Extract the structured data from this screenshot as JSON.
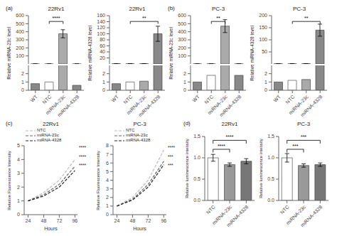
{
  "chart_data": [
    {
      "type": "bar",
      "panel_label": "(a)",
      "title": "22Rv1",
      "ylabel": "Relative miRNA-23c level",
      "categories": [
        "WT",
        "NTC",
        "miRNA-23c",
        "miRNA-4328"
      ],
      "values": [
        0.8,
        1.0,
        375,
        0.6
      ],
      "errors": [
        0.1,
        0.15,
        50,
        0.1
      ],
      "colors": [
        "#888888",
        "#ffffff",
        "#aaaaaa",
        "#888888"
      ],
      "ylim": [
        0,
        600
      ],
      "yticks": [
        100,
        200,
        300,
        400,
        500,
        600
      ],
      "ylim_lower": [
        0,
        3
      ],
      "yticks_lower": [
        0,
        1,
        2
      ],
      "significance": [
        {
          "text": "****",
          "from": "NTC",
          "to": "miRNA-23c"
        }
      ]
    },
    {
      "type": "bar",
      "title": "22Rv1",
      "ylabel": "Relative miRNA-4328 level",
      "categories": [
        "WT",
        "NTC",
        "miRNA-23c",
        "miRNA-4328"
      ],
      "values": [
        0.8,
        1.0,
        1.1,
        100
      ],
      "errors": [
        0.1,
        0.1,
        0.15,
        25
      ],
      "colors": [
        "#888888",
        "#ffffff",
        "#aaaaaa",
        "#888888"
      ],
      "ylim": [
        0,
        160
      ],
      "yticks": [
        20,
        40,
        60,
        80,
        100,
        120,
        140,
        160
      ],
      "ylim_lower": [
        0,
        3
      ],
      "yticks_lower": [
        0,
        1,
        2
      ],
      "significance": [
        {
          "text": "**",
          "from": "NTC",
          "to": "miRNA-4328"
        }
      ]
    },
    {
      "type": "bar",
      "panel_label": "(b)",
      "title": "PC-3",
      "ylabel": "Relative miRNA-23c level",
      "categories": [
        "WT",
        "NTC",
        "miRNA-23c",
        "miRNA-4328"
      ],
      "values": [
        1.0,
        1.8,
        470,
        1.8
      ],
      "errors": [
        0.15,
        0.2,
        80,
        0.2
      ],
      "colors": [
        "#888888",
        "#ffffff",
        "#aaaaaa",
        "#888888"
      ],
      "ylim": [
        0,
        600
      ],
      "yticks": [
        100,
        200,
        300,
        400,
        500,
        600
      ],
      "ylim_lower": [
        0,
        3
      ],
      "yticks_lower": [
        0,
        1,
        2
      ],
      "significance": [
        {
          "text": "**",
          "from": "NTC",
          "to": "miRNA-23c"
        }
      ]
    },
    {
      "type": "bar",
      "title": "PC-3",
      "ylabel": "Relative miRNA-4328 level",
      "categories": [
        "WT",
        "NTC",
        "miRNA-23c",
        "miRNA-4328"
      ],
      "values": [
        1.0,
        1.2,
        1.3,
        140
      ],
      "errors": [
        0.15,
        0.1,
        0.2,
        25
      ],
      "colors": [
        "#888888",
        "#ffffff",
        "#aaaaaa",
        "#888888"
      ],
      "ylim": [
        0,
        200
      ],
      "yticks": [
        50,
        100,
        150,
        200
      ],
      "ylim_lower": [
        0,
        3
      ],
      "yticks_lower": [
        0,
        1,
        2
      ],
      "significance": [
        {
          "text": "**",
          "from": "NTC",
          "to": "miRNA-4328"
        }
      ]
    },
    {
      "type": "line",
      "panel_label": "(c)",
      "title": "22Rv1",
      "xlabel": "Hours",
      "ylabel": "Relative Fluorescence Intensity",
      "x": [
        24,
        48,
        72,
        96
      ],
      "xlim": [
        18,
        100
      ],
      "xticks": [
        24,
        48,
        72,
        96
      ],
      "ylim": [
        0,
        5
      ],
      "yticks": [
        0,
        1,
        2,
        3,
        4,
        5
      ],
      "legend": "upper left",
      "series": [
        {
          "name": "NTC",
          "color": "#bbbbbb",
          "line_style": "dashed",
          "values": [
            1.0,
            1.6,
            2.5,
            4.0
          ]
        },
        {
          "name": "miRNA-23c",
          "color": "#666666",
          "line_style": "dashed",
          "values": [
            1.0,
            1.45,
            2.2,
            3.5
          ]
        },
        {
          "name": "miRNA-4328",
          "color": "#222222",
          "line_style": "dashed",
          "values": [
            1.0,
            1.35,
            2.0,
            3.2
          ]
        }
      ],
      "annotations": [
        "****",
        "****",
        "****"
      ]
    },
    {
      "type": "line",
      "title": "PC-3",
      "xlabel": "Hours",
      "ylabel": "Relative Fluorescence Intensity",
      "x": [
        24,
        48,
        72,
        96
      ],
      "xlim": [
        18,
        100
      ],
      "xticks": [
        24,
        48,
        72,
        96
      ],
      "ylim": [
        0,
        8
      ],
      "yticks": [
        0,
        1,
        2,
        3,
        4,
        5,
        6,
        7,
        8
      ],
      "legend": "upper left",
      "series": [
        {
          "name": "NTC",
          "color": "#bbbbbb",
          "line_style": "dashed",
          "values": [
            1.0,
            2.0,
            4.0,
            7.5
          ]
        },
        {
          "name": "miRNA-23c",
          "color": "#666666",
          "line_style": "dashed",
          "values": [
            1.0,
            1.8,
            3.5,
            6.2
          ]
        },
        {
          "name": "miRNA-4328",
          "color": "#222222",
          "line_style": "dashed",
          "values": [
            1.0,
            1.7,
            3.2,
            5.8
          ]
        }
      ],
      "annotations": [
        "****",
        "***",
        "***"
      ]
    },
    {
      "type": "bar",
      "panel_label": "(d)",
      "title": "22Rv1",
      "ylabel": "Relative luminescence intensity",
      "categories": [
        "NTC",
        "miRNA-23c",
        "miRNA-4328"
      ],
      "values": [
        1.0,
        0.84,
        0.92
      ],
      "errors": [
        0.08,
        0.04,
        0.06
      ],
      "colors": [
        "#ffffff",
        "#999999",
        "#777777"
      ],
      "ylim": [
        0,
        1.5
      ],
      "yticks": [
        {
          "value": 0,
          "label": "0.0"
        },
        0.5,
        {
          "value": 1,
          "label": "1.0"
        },
        1.5
      ],
      "significance": [
        {
          "text": "****",
          "from": "NTC",
          "to": "miRNA-23c"
        },
        {
          "text": "****",
          "from": "NTC",
          "to": "miRNA-4328"
        }
      ]
    },
    {
      "type": "bar",
      "title": "PC-3",
      "ylabel": "Relative luminescence intensity",
      "categories": [
        "NTC",
        "miRNA-23c",
        "miRNA-4328"
      ],
      "values": [
        1.0,
        0.82,
        0.84
      ],
      "errors": [
        0.1,
        0.04,
        0.04
      ],
      "colors": [
        "#ffffff",
        "#999999",
        "#777777"
      ],
      "ylim": [
        0,
        1.5
      ],
      "yticks": [
        {
          "value": 0,
          "label": "0.0"
        },
        0.5,
        {
          "value": 1,
          "label": "1.0"
        },
        1.5
      ],
      "significance": [
        {
          "text": "***",
          "from": "NTC",
          "to": "miRNA-23c"
        },
        {
          "text": "***",
          "from": "NTC",
          "to": "miRNA-4328"
        }
      ]
    }
  ]
}
